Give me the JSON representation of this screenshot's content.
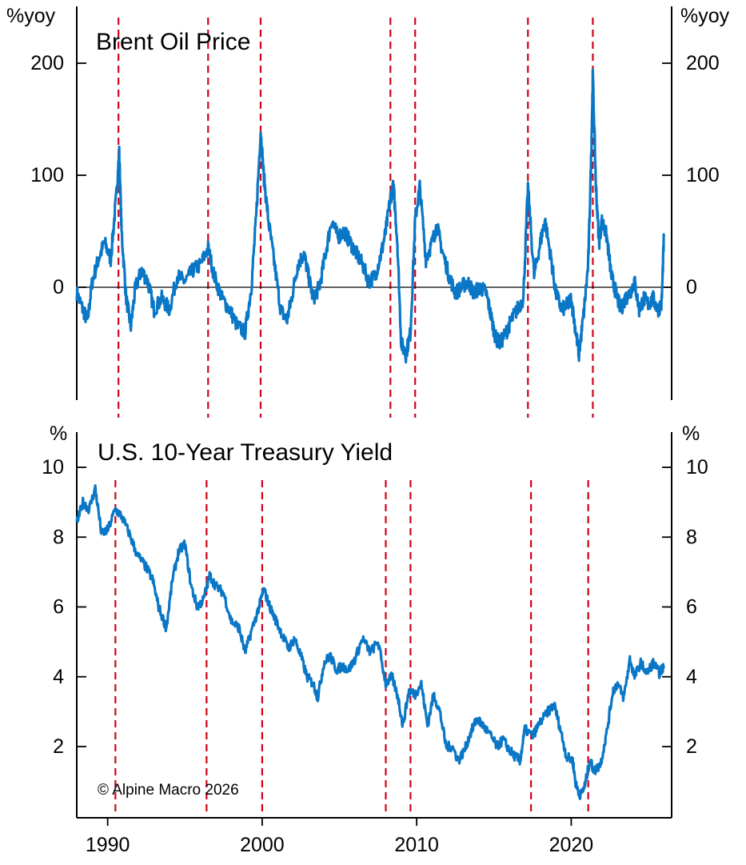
{
  "copyright": "© Alpine Macro 2026",
  "chart_data": [
    {
      "type": "line",
      "title": "Brent Oil Price",
      "ylabel": "%yoy",
      "xlim": [
        1988,
        2026.5
      ],
      "ylim": [
        -100,
        225
      ],
      "yticks": [
        0,
        100,
        200
      ],
      "xticks": [
        1990,
        2000,
        2010,
        2020
      ],
      "zero_line": true,
      "vlines": [
        1990.7,
        1996.5,
        1999.9,
        2008.3,
        2009.9,
        2017.2,
        2021.4
      ],
      "series": [
        {
          "name": "Brent Oil Price %yoy",
          "color": "#0A77C6",
          "x": [
            1988.0,
            1988.4,
            1988.7,
            1989.0,
            1989.4,
            1989.8,
            1990.2,
            1990.55,
            1990.75,
            1990.9,
            1991.2,
            1991.5,
            1991.8,
            1992.2,
            1992.6,
            1993.0,
            1993.5,
            1994.0,
            1994.5,
            1995.0,
            1995.5,
            1996.0,
            1996.5,
            1996.9,
            1997.4,
            1997.9,
            1998.4,
            1998.9,
            1999.3,
            1999.6,
            1999.9,
            2000.1,
            2000.4,
            2000.8,
            2001.2,
            2001.6,
            2001.9,
            2002.3,
            2002.7,
            2003.0,
            2003.3,
            2003.7,
            2004.1,
            2004.5,
            2004.9,
            2005.3,
            2005.7,
            2006.1,
            2006.5,
            2006.9,
            2007.3,
            2007.7,
            2008.0,
            2008.3,
            2008.5,
            2008.75,
            2009.0,
            2009.3,
            2009.6,
            2009.9,
            2010.2,
            2010.6,
            2011.0,
            2011.3,
            2011.7,
            2012.1,
            2012.5,
            2012.9,
            2013.3,
            2013.7,
            2014.1,
            2014.5,
            2014.8,
            2015.1,
            2015.4,
            2015.8,
            2016.1,
            2016.5,
            2016.9,
            2017.2,
            2017.6,
            2018.0,
            2018.3,
            2018.7,
            2019.0,
            2019.4,
            2019.8,
            2020.0,
            2020.3,
            2020.5,
            2020.8,
            2021.1,
            2021.3,
            2021.4,
            2021.6,
            2021.8,
            2022.0,
            2022.3,
            2022.6,
            2022.9,
            2023.2,
            2023.5,
            2023.8,
            2024.1,
            2024.4,
            2024.7,
            2025.0,
            2025.3,
            2025.6,
            2025.85,
            2026.0
          ],
          "y": [
            -5,
            -20,
            -30,
            5,
            25,
            40,
            25,
            80,
            120,
            50,
            -10,
            -35,
            0,
            15,
            5,
            -20,
            -10,
            -20,
            10,
            5,
            15,
            20,
            35,
            10,
            -10,
            -20,
            -35,
            -40,
            0,
            60,
            140,
            100,
            60,
            20,
            -20,
            -30,
            -10,
            20,
            30,
            10,
            -10,
            0,
            30,
            60,
            45,
            50,
            40,
            30,
            20,
            5,
            10,
            30,
            50,
            80,
            90,
            40,
            -50,
            -60,
            -40,
            60,
            90,
            25,
            40,
            55,
            30,
            10,
            -5,
            0,
            5,
            -5,
            0,
            -5,
            -25,
            -45,
            -50,
            -40,
            -30,
            -20,
            -10,
            90,
            10,
            40,
            60,
            25,
            -5,
            -20,
            -15,
            -10,
            -40,
            -60,
            -25,
            20,
            120,
            190,
            90,
            40,
            60,
            45,
            10,
            -5,
            -20,
            -10,
            -5,
            5,
            -20,
            -10,
            -15,
            -10,
            -20,
            -15,
            45
          ]
        }
      ]
    },
    {
      "type": "line",
      "title": "U.S. 10-Year Treasury Yield",
      "ylabel": "%",
      "xlim": [
        1988,
        2026.5
      ],
      "ylim": [
        0,
        11
      ],
      "yticks": [
        2,
        4,
        6,
        8,
        10
      ],
      "xticks": [
        1990,
        2000,
        2010,
        2020
      ],
      "xtick_labels": [
        "1990",
        "2000",
        "2010",
        "2020"
      ],
      "vlines": [
        1990.5,
        1996.4,
        2000.0,
        2008.0,
        2009.6,
        2017.4,
        2021.1
      ],
      "series": [
        {
          "name": "U.S. 10-Year Treasury Yield",
          "color": "#0A77C6",
          "x": [
            1988.0,
            1988.4,
            1988.8,
            1989.2,
            1989.6,
            1990.0,
            1990.5,
            1990.9,
            1991.4,
            1991.9,
            1992.4,
            1992.9,
            1993.3,
            1993.8,
            1994.2,
            1994.6,
            1995.0,
            1995.4,
            1995.8,
            1996.2,
            1996.6,
            1997.0,
            1997.5,
            1998.0,
            1998.5,
            1998.9,
            1999.3,
            1999.8,
            2000.1,
            2000.5,
            2000.9,
            2001.3,
            2001.7,
            2002.1,
            2002.5,
            2002.9,
            2003.3,
            2003.6,
            2004.0,
            2004.4,
            2004.8,
            2005.2,
            2005.6,
            2006.0,
            2006.5,
            2007.0,
            2007.5,
            2008.0,
            2008.4,
            2008.8,
            2009.1,
            2009.5,
            2009.9,
            2010.3,
            2010.7,
            2011.1,
            2011.5,
            2011.9,
            2012.3,
            2012.7,
            2013.1,
            2013.5,
            2013.9,
            2014.3,
            2014.8,
            2015.2,
            2015.6,
            2016.0,
            2016.4,
            2016.7,
            2017.0,
            2017.5,
            2018.0,
            2018.5,
            2018.9,
            2019.3,
            2019.7,
            2020.1,
            2020.3,
            2020.6,
            2020.9,
            2021.2,
            2021.5,
            2021.9,
            2022.3,
            2022.7,
            2023.0,
            2023.4,
            2023.8,
            2024.1,
            2024.5,
            2024.9,
            2025.3,
            2025.7,
            2026.0
          ],
          "y": [
            8.4,
            9.0,
            8.8,
            9.4,
            8.1,
            8.2,
            8.8,
            8.6,
            8.1,
            7.5,
            7.2,
            6.8,
            6.0,
            5.4,
            6.8,
            7.6,
            7.8,
            6.6,
            6.0,
            6.2,
            6.9,
            6.6,
            6.4,
            5.6,
            5.4,
            4.7,
            5.3,
            6.0,
            6.5,
            6.0,
            5.6,
            5.2,
            4.8,
            5.1,
            4.6,
            4.0,
            3.8,
            3.4,
            4.4,
            4.6,
            4.2,
            4.3,
            4.2,
            4.5,
            5.1,
            4.7,
            5.0,
            3.8,
            4.0,
            3.4,
            2.6,
            3.6,
            3.5,
            3.8,
            2.6,
            3.5,
            3.0,
            2.0,
            2.0,
            1.6,
            1.9,
            2.4,
            2.8,
            2.6,
            2.3,
            2.0,
            2.2,
            1.9,
            1.7,
            1.6,
            2.5,
            2.3,
            2.7,
            3.0,
            3.2,
            2.5,
            1.7,
            1.6,
            0.9,
            0.6,
            0.9,
            1.6,
            1.3,
            1.5,
            2.4,
            3.6,
            3.8,
            3.4,
            4.5,
            4.0,
            4.4,
            4.1,
            4.4,
            4.1,
            4.3
          ]
        }
      ]
    }
  ]
}
